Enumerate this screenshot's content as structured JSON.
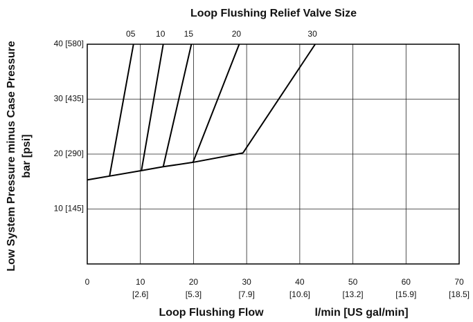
{
  "chart_data": {
    "type": "line",
    "title": "Loop Flushing Relief Valve Size",
    "xlabel": "Loop Flushing Flow",
    "xlabel_units": "l/min [US gal/min]",
    "ylabel": [
      "Low System Pressure minus Case Pressure",
      "bar [psi]"
    ],
    "xlim": [
      0,
      70
    ],
    "xticks": [
      0,
      10,
      20,
      30,
      40,
      50,
      60,
      70
    ],
    "xtick_sublabels": [
      null,
      "[2.6]",
      "[5.3]",
      "[7.9]",
      "[10.6]",
      "[13.2]",
      "[15.9]",
      "[18.5]"
    ],
    "ylim": [
      0,
      40
    ],
    "yticks": [
      {
        "value": 10,
        "label": "10 [145]"
      },
      {
        "value": 20,
        "label": "20 [290]"
      },
      {
        "value": 30,
        "label": "30 [435]"
      },
      {
        "value": 40,
        "label": "40 [580]"
      }
    ],
    "grid": true,
    "color": "#000000",
    "series": [
      {
        "x": [
          0,
          4.2,
          10.2,
          14.3,
          19.9,
          29.3
        ],
        "values": [
          15.3,
          16.0,
          17.0,
          17.7,
          18.5,
          20.2
        ]
      },
      {
        "name": "05",
        "x": [
          4.2,
          8.7
        ],
        "values": [
          16.0,
          40
        ]
      },
      {
        "name": "10",
        "x": [
          10.2,
          14.3
        ],
        "values": [
          17.0,
          40
        ]
      },
      {
        "name": "15",
        "x": [
          14.3,
          19.6
        ],
        "values": [
          17.7,
          40
        ]
      },
      {
        "name": "20",
        "x": [
          19.9,
          28.6
        ],
        "values": [
          18.5,
          40
        ]
      },
      {
        "name": "30",
        "x": [
          29.3,
          42.9
        ],
        "values": [
          20.2,
          40
        ]
      }
    ]
  }
}
